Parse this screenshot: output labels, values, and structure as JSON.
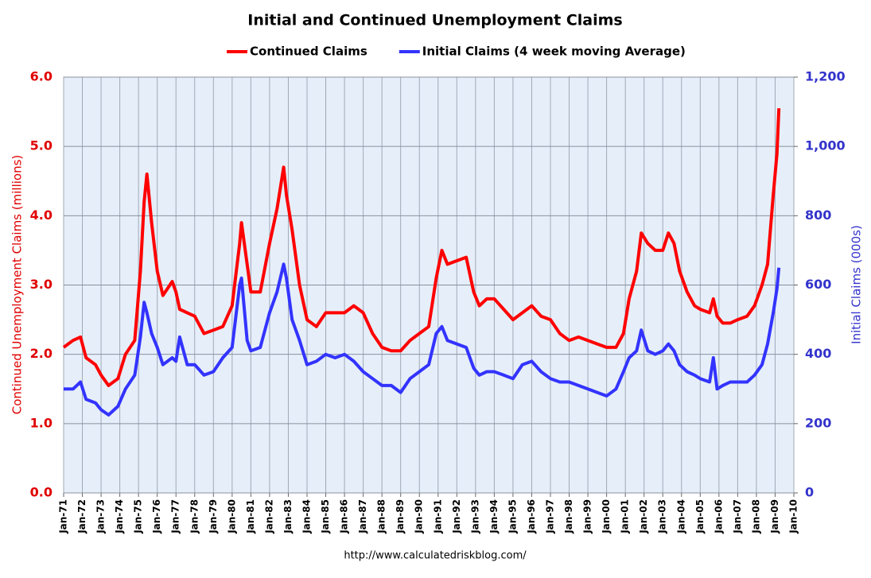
{
  "chart_data": {
    "type": "line",
    "title": "Initial and Continued Unemployment Claims",
    "ylabel": "Continued Unemployment Claims (millions)",
    "y2label": "Initial Claims (000s)",
    "source": "http://www.calculatedriskblog.com/",
    "legend": "top",
    "grid": true,
    "xlim": [
      1971,
      2010
    ],
    "xticks": [
      {
        "value": 1971,
        "label": "Jan-71"
      },
      {
        "value": 1972,
        "label": "Jan-72"
      },
      {
        "value": 1973,
        "label": "Jan-73"
      },
      {
        "value": 1974,
        "label": "Jan-74"
      },
      {
        "value": 1975,
        "label": "Jan-75"
      },
      {
        "value": 1976,
        "label": "Jan-76"
      },
      {
        "value": 1977,
        "label": "Jan-77"
      },
      {
        "value": 1978,
        "label": "Jan-78"
      },
      {
        "value": 1979,
        "label": "Jan-79"
      },
      {
        "value": 1980,
        "label": "Jan-80"
      },
      {
        "value": 1981,
        "label": "Jan-81"
      },
      {
        "value": 1982,
        "label": "Jan-82"
      },
      {
        "value": 1983,
        "label": "Jan-83"
      },
      {
        "value": 1984,
        "label": "Jan-84"
      },
      {
        "value": 1985,
        "label": "Jan-85"
      },
      {
        "value": 1986,
        "label": "Jan-86"
      },
      {
        "value": 1987,
        "label": "Jan-87"
      },
      {
        "value": 1988,
        "label": "Jan-88"
      },
      {
        "value": 1989,
        "label": "Jan-89"
      },
      {
        "value": 1990,
        "label": "Jan-90"
      },
      {
        "value": 1991,
        "label": "Jan-91"
      },
      {
        "value": 1992,
        "label": "Jan-92"
      },
      {
        "value": 1993,
        "label": "Jan-93"
      },
      {
        "value": 1994,
        "label": "Jan-94"
      },
      {
        "value": 1995,
        "label": "Jan-95"
      },
      {
        "value": 1996,
        "label": "Jan-96"
      },
      {
        "value": 1997,
        "label": "Jan-97"
      },
      {
        "value": 1998,
        "label": "Jan-98"
      },
      {
        "value": 1999,
        "label": "Jan-99"
      },
      {
        "value": 2000,
        "label": "Jan-00"
      },
      {
        "value": 2001,
        "label": "Jan-01"
      },
      {
        "value": 2002,
        "label": "Jan-02"
      },
      {
        "value": 2003,
        "label": "Jan-03"
      },
      {
        "value": 2004,
        "label": "Jan-04"
      },
      {
        "value": 2005,
        "label": "Jan-05"
      },
      {
        "value": 2006,
        "label": "Jan-06"
      },
      {
        "value": 2007,
        "label": "Jan-07"
      },
      {
        "value": 2008,
        "label": "Jan-08"
      },
      {
        "value": 2009,
        "label": "Jan-09"
      },
      {
        "value": 2010,
        "label": "Jan-10"
      }
    ],
    "ylim": [
      0,
      6
    ],
    "yticks": [
      {
        "value": 0,
        "label": "0.0"
      },
      {
        "value": 1,
        "label": "1.0"
      },
      {
        "value": 2,
        "label": "2.0"
      },
      {
        "value": 3,
        "label": "3.0"
      },
      {
        "value": 4,
        "label": "4.0"
      },
      {
        "value": 5,
        "label": "5.0"
      },
      {
        "value": 6,
        "label": "6.0"
      }
    ],
    "y2lim": [
      0,
      1200
    ],
    "y2ticks": [
      0,
      200,
      400,
      600,
      800,
      {
        "value": 1000,
        "label": "1,000"
      },
      {
        "value": 1200,
        "label": "1,200"
      }
    ],
    "x": [
      1971.0,
      1971.5,
      1971.9,
      1972.2,
      1972.7,
      1973.0,
      1973.4,
      1973.9,
      1974.3,
      1974.8,
      1975.1,
      1975.3,
      1975.45,
      1975.7,
      1976.0,
      1976.3,
      1976.8,
      1977.0,
      1977.2,
      1977.6,
      1978.0,
      1978.5,
      1979.0,
      1979.5,
      1980.0,
      1980.4,
      1980.5,
      1980.8,
      1981.0,
      1981.5,
      1982.0,
      1982.4,
      1982.75,
      1982.9,
      1983.2,
      1983.6,
      1984.0,
      1984.5,
      1985.0,
      1985.5,
      1986.0,
      1986.5,
      1987.0,
      1987.5,
      1988.0,
      1988.5,
      1989.0,
      1989.5,
      1990.0,
      1990.5,
      1990.9,
      1991.2,
      1991.5,
      1992.0,
      1992.5,
      1992.9,
      1993.2,
      1993.6,
      1994.0,
      1994.5,
      1995.0,
      1995.5,
      1996.0,
      1996.5,
      1997.0,
      1997.5,
      1998.0,
      1998.5,
      1999.0,
      1999.5,
      2000.0,
      2000.5,
      2000.9,
      2001.2,
      2001.6,
      2001.85,
      2002.2,
      2002.6,
      2003.0,
      2003.3,
      2003.6,
      2003.9,
      2004.3,
      2004.7,
      2005.0,
      2005.5,
      2005.7,
      2005.9,
      2006.2,
      2006.6,
      2007.0,
      2007.5,
      2007.9,
      2008.3,
      2008.6,
      2008.9,
      2009.1,
      2009.2
    ],
    "series": [
      {
        "name": "Continued Claims",
        "color": "#ff0000",
        "values": [
          2.1,
          2.2,
          2.25,
          1.95,
          1.85,
          1.7,
          1.55,
          1.65,
          2.0,
          2.2,
          3.2,
          4.2,
          4.6,
          3.9,
          3.2,
          2.85,
          3.05,
          2.9,
          2.65,
          2.6,
          2.55,
          2.3,
          2.35,
          2.4,
          2.7,
          3.6,
          3.9,
          3.3,
          2.9,
          2.9,
          3.6,
          4.1,
          4.7,
          4.3,
          3.8,
          3.0,
          2.5,
          2.4,
          2.6,
          2.6,
          2.6,
          2.7,
          2.6,
          2.3,
          2.1,
          2.05,
          2.05,
          2.2,
          2.3,
          2.4,
          3.1,
          3.5,
          3.3,
          3.35,
          3.4,
          2.9,
          2.7,
          2.8,
          2.8,
          2.65,
          2.5,
          2.6,
          2.7,
          2.55,
          2.5,
          2.3,
          2.2,
          2.25,
          2.2,
          2.15,
          2.1,
          2.1,
          2.3,
          2.8,
          3.2,
          3.75,
          3.6,
          3.5,
          3.5,
          3.75,
          3.6,
          3.2,
          2.9,
          2.7,
          2.65,
          2.6,
          2.8,
          2.55,
          2.45,
          2.45,
          2.5,
          2.55,
          2.7,
          3.0,
          3.3,
          4.3,
          4.9,
          5.55
        ]
      },
      {
        "name": "Initial Claims (4 week moving Average)",
        "color": "#3333ff",
        "axis": "y2",
        "values": [
          300,
          300,
          320,
          270,
          260,
          240,
          225,
          250,
          300,
          340,
          450,
          550,
          520,
          460,
          420,
          370,
          390,
          380,
          450,
          370,
          370,
          340,
          350,
          390,
          420,
          600,
          620,
          440,
          410,
          420,
          520,
          580,
          660,
          620,
          500,
          440,
          370,
          380,
          400,
          390,
          400,
          380,
          350,
          330,
          310,
          310,
          290,
          330,
          350,
          370,
          460,
          480,
          440,
          430,
          420,
          360,
          340,
          350,
          350,
          340,
          330,
          370,
          380,
          350,
          330,
          320,
          320,
          310,
          300,
          290,
          280,
          300,
          350,
          390,
          410,
          470,
          410,
          400,
          410,
          430,
          410,
          370,
          350,
          340,
          330,
          320,
          390,
          300,
          310,
          320,
          320,
          320,
          340,
          370,
          430,
          520,
          590,
          650
        ]
      }
    ]
  }
}
